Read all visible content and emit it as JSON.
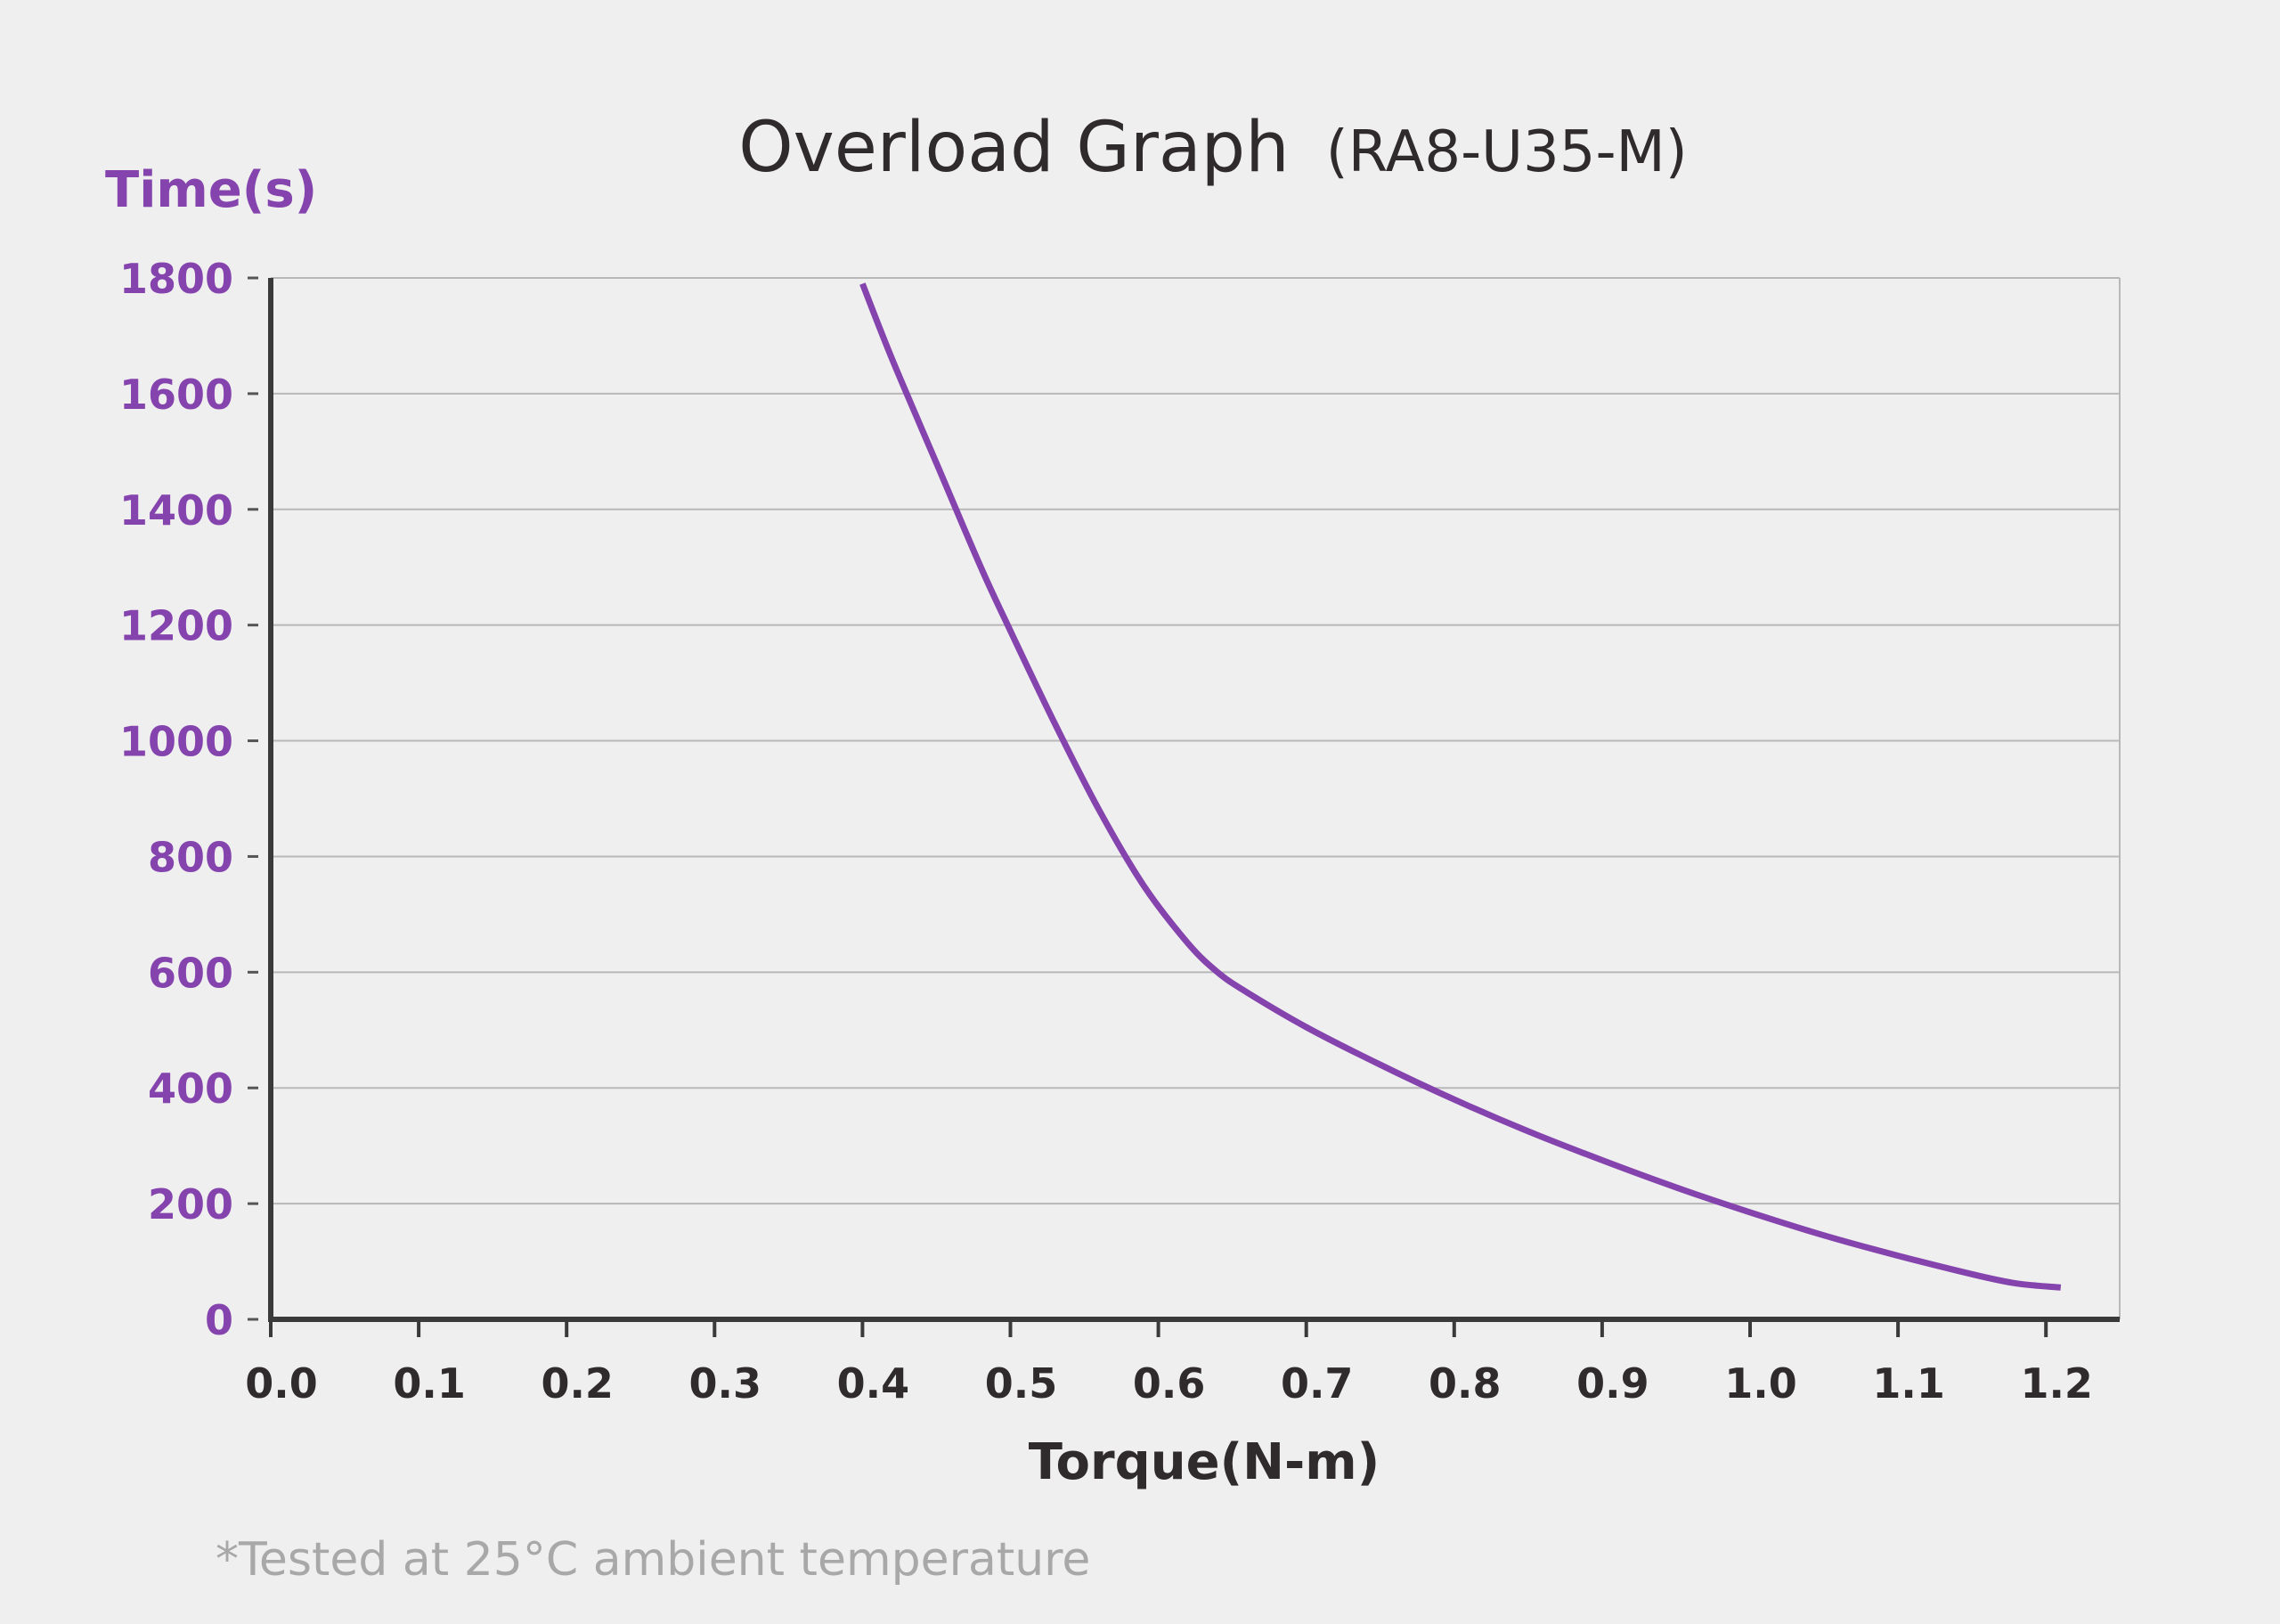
{
  "chart_data": {
    "type": "line",
    "title": "Overload Graph",
    "subtitle": "(RA8-U35-M)",
    "ylabel": "Time(s)",
    "xlabel": "Torque(N-m)",
    "xlim": [
      0.0,
      1.25
    ],
    "ylim": [
      0,
      1800
    ],
    "x_ticks": [
      "0.0",
      "0.1",
      "0.2",
      "0.3",
      "0.4",
      "0.5",
      "0.6",
      "0.7",
      "0.8",
      "0.9",
      "1.0",
      "1.1",
      "1.2"
    ],
    "y_ticks": [
      "0",
      "200",
      "400",
      "600",
      "800",
      "1000",
      "1200",
      "1400",
      "1600",
      "1800"
    ],
    "grid": "horizontal",
    "series": [
      {
        "color": "#8443ad",
        "x": [
          0.4,
          0.42,
          0.45,
          0.48,
          0.5,
          0.53,
          0.56,
          0.59,
          0.62,
          0.64,
          0.66,
          0.7,
          0.75,
          0.8,
          0.85,
          0.9,
          0.95,
          1.0,
          1.05,
          1.1,
          1.15,
          1.18,
          1.21
        ],
        "y": [
          1790,
          1660,
          1480,
          1300,
          1190,
          1030,
          880,
          750,
          650,
          600,
          565,
          505,
          440,
          380,
          325,
          275,
          228,
          185,
          145,
          110,
          78,
          62,
          55
        ]
      }
    ]
  },
  "footnote": "*Tested at 25°C ambient temperature",
  "colors": {
    "accent": "#8443ad",
    "axis": "#3a3a3a",
    "grid": "#b8b8b8",
    "text": "#2f2a2c",
    "note": "#a8a8a8",
    "background": "#efefef"
  }
}
